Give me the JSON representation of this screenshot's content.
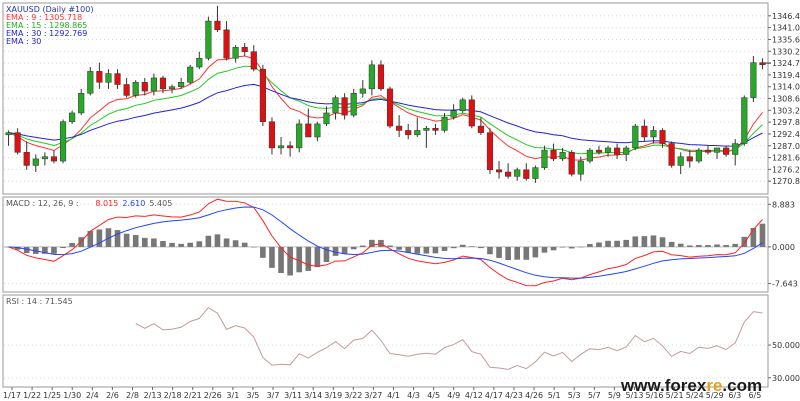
{
  "colors": {
    "bull": "#28a828",
    "bear": "#dd1111",
    "wick": "#333333",
    "ema9": "#ff3333",
    "ema15": "#22cc22",
    "ema30": "#2222dd",
    "macd_line": "#ff2222",
    "signal_line": "#2244ff",
    "hist": "#777777",
    "rsi": "#c49a9a",
    "grid": "#d8d8d8",
    "frame": "#999999",
    "watermark": "#1a1a1a",
    "watermark_accent": "#e8a020"
  },
  "panels": {
    "price": {
      "legend": [
        {
          "text": "XAUUSD (Daily #100)",
          "color": "#2233aa"
        },
        {
          "text": "EMA : 9 : 1305.718",
          "color": "#ff3333"
        },
        {
          "text": "EMA : 15 : 1298.865",
          "color": "#22aa22"
        },
        {
          "text": "EMA : 30 : 1292.769",
          "color": "#2222dd"
        },
        {
          "text": "EMA : 30",
          "color": "#2222dd"
        }
      ],
      "y_ticks": [
        "1346.40",
        "1341.00",
        "1335.60",
        "1330.20",
        "1324.79",
        "1319.40",
        "1314.00",
        "1308.60",
        "1303.20",
        "1297.80",
        "1292.40",
        "1287.00",
        "1281.60",
        "1276.20",
        "1270.80"
      ],
      "ylim": [
        1265.4,
        1351.8
      ],
      "last_price": "1324.79"
    },
    "macd": {
      "legend": [
        {
          "text": "MACD : 12, 26, 9 :",
          "color": "#555555"
        },
        {
          "text": "8.015",
          "color": "#ff2222"
        },
        {
          "text": "2.610",
          "color": "#2244ff"
        },
        {
          "text": "5.405",
          "color": "#555555"
        }
      ],
      "y_ticks": [
        "8.883",
        "0.000",
        "-7.643"
      ],
      "ylim": [
        -9.2,
        10.2
      ]
    },
    "rsi": {
      "legend": [
        {
          "text": "RSI : 14 : 71.545",
          "color": "#555555"
        }
      ],
      "y_ticks": [
        "50.000",
        "30.000"
      ],
      "ylim": [
        25,
        80
      ]
    }
  },
  "x_tick_labels": [
    "1/17",
    "1/22",
    "1/25",
    "1/30",
    "2/4",
    "2/6",
    "2/8",
    "2/13",
    "2/18",
    "2/21",
    "2/26",
    "3/1",
    "3/5",
    "3/7",
    "3/11",
    "3/14",
    "3/19",
    "3/22",
    "3/27",
    "4/1",
    "4/3",
    "4/5",
    "4/9",
    "4/12",
    "4/17",
    "4/23",
    "4/26",
    "5/1",
    "5/3",
    "5/7",
    "5/9",
    "5/13",
    "5/16",
    "5/21",
    "5/24",
    "5/29",
    "6/3",
    "6/5"
  ],
  "watermark": {
    "pre": "www.forex",
    "accent": "re",
    "post": ".com"
  },
  "chart_data": [
    {
      "type": "candlestick",
      "title": "XAUUSD (Daily #100)",
      "ylim": [
        1265.4,
        1351.8
      ],
      "candles": [
        {
          "o": 1292,
          "h": 1294,
          "l": 1287,
          "c": 1293
        },
        {
          "o": 1293,
          "h": 1295,
          "l": 1283,
          "c": 1284
        },
        {
          "o": 1284,
          "h": 1289,
          "l": 1276,
          "c": 1278
        },
        {
          "o": 1278,
          "h": 1283,
          "l": 1275,
          "c": 1281
        },
        {
          "o": 1281,
          "h": 1284,
          "l": 1278,
          "c": 1282
        },
        {
          "o": 1282,
          "h": 1285,
          "l": 1279,
          "c": 1280
        },
        {
          "o": 1280,
          "h": 1299,
          "l": 1279,
          "c": 1298
        },
        {
          "o": 1298,
          "h": 1303,
          "l": 1297,
          "c": 1302
        },
        {
          "o": 1302,
          "h": 1313,
          "l": 1301,
          "c": 1311
        },
        {
          "o": 1311,
          "h": 1323,
          "l": 1310,
          "c": 1321
        },
        {
          "o": 1321,
          "h": 1325,
          "l": 1313,
          "c": 1316
        },
        {
          "o": 1316,
          "h": 1322,
          "l": 1313,
          "c": 1320
        },
        {
          "o": 1320,
          "h": 1322,
          "l": 1313,
          "c": 1315
        },
        {
          "o": 1315,
          "h": 1318,
          "l": 1309,
          "c": 1310
        },
        {
          "o": 1310,
          "h": 1317,
          "l": 1309,
          "c": 1316
        },
        {
          "o": 1316,
          "h": 1318,
          "l": 1310,
          "c": 1312
        },
        {
          "o": 1312,
          "h": 1320,
          "l": 1310,
          "c": 1318
        },
        {
          "o": 1318,
          "h": 1319,
          "l": 1311,
          "c": 1313
        },
        {
          "o": 1313,
          "h": 1315,
          "l": 1311,
          "c": 1314
        },
        {
          "o": 1314,
          "h": 1318,
          "l": 1313,
          "c": 1316
        },
        {
          "o": 1316,
          "h": 1324,
          "l": 1315,
          "c": 1323
        },
        {
          "o": 1323,
          "h": 1330,
          "l": 1322,
          "c": 1327
        },
        {
          "o": 1327,
          "h": 1346,
          "l": 1326,
          "c": 1344
        },
        {
          "o": 1344,
          "h": 1351,
          "l": 1339,
          "c": 1340
        },
        {
          "o": 1340,
          "h": 1344,
          "l": 1326,
          "c": 1327
        },
        {
          "o": 1327,
          "h": 1333,
          "l": 1325,
          "c": 1332
        },
        {
          "o": 1332,
          "h": 1334,
          "l": 1328,
          "c": 1330
        },
        {
          "o": 1330,
          "h": 1333,
          "l": 1321,
          "c": 1322
        },
        {
          "o": 1322,
          "h": 1324,
          "l": 1296,
          "c": 1298
        },
        {
          "o": 1298,
          "h": 1300,
          "l": 1283,
          "c": 1286
        },
        {
          "o": 1286,
          "h": 1291,
          "l": 1283,
          "c": 1287
        },
        {
          "o": 1287,
          "h": 1289,
          "l": 1282,
          "c": 1286
        },
        {
          "o": 1286,
          "h": 1299,
          "l": 1284,
          "c": 1297
        },
        {
          "o": 1297,
          "h": 1304,
          "l": 1291,
          "c": 1291
        },
        {
          "o": 1291,
          "h": 1298,
          "l": 1289,
          "c": 1297
        },
        {
          "o": 1297,
          "h": 1305,
          "l": 1296,
          "c": 1302
        },
        {
          "o": 1302,
          "h": 1310,
          "l": 1299,
          "c": 1309
        },
        {
          "o": 1309,
          "h": 1311,
          "l": 1299,
          "c": 1301
        },
        {
          "o": 1301,
          "h": 1313,
          "l": 1300,
          "c": 1311
        },
        {
          "o": 1311,
          "h": 1317,
          "l": 1309,
          "c": 1313
        },
        {
          "o": 1313,
          "h": 1326,
          "l": 1310,
          "c": 1324
        },
        {
          "o": 1324,
          "h": 1326,
          "l": 1312,
          "c": 1313
        },
        {
          "o": 1313,
          "h": 1314,
          "l": 1295,
          "c": 1296
        },
        {
          "o": 1296,
          "h": 1301,
          "l": 1291,
          "c": 1294
        },
        {
          "o": 1294,
          "h": 1297,
          "l": 1290,
          "c": 1292
        },
        {
          "o": 1292,
          "h": 1300,
          "l": 1291,
          "c": 1294
        },
        {
          "o": 1294,
          "h": 1296,
          "l": 1286,
          "c": 1295
        },
        {
          "o": 1295,
          "h": 1297,
          "l": 1292,
          "c": 1294
        },
        {
          "o": 1294,
          "h": 1302,
          "l": 1293,
          "c": 1300
        },
        {
          "o": 1300,
          "h": 1306,
          "l": 1299,
          "c": 1303
        },
        {
          "o": 1303,
          "h": 1309,
          "l": 1302,
          "c": 1308
        },
        {
          "o": 1308,
          "h": 1310,
          "l": 1295,
          "c": 1296
        },
        {
          "o": 1296,
          "h": 1300,
          "l": 1292,
          "c": 1293
        },
        {
          "o": 1293,
          "h": 1295,
          "l": 1274,
          "c": 1276
        },
        {
          "o": 1276,
          "h": 1280,
          "l": 1272,
          "c": 1275
        },
        {
          "o": 1275,
          "h": 1279,
          "l": 1272,
          "c": 1273
        },
        {
          "o": 1273,
          "h": 1277,
          "l": 1271,
          "c": 1276
        },
        {
          "o": 1276,
          "h": 1279,
          "l": 1271,
          "c": 1272
        },
        {
          "o": 1272,
          "h": 1278,
          "l": 1270,
          "c": 1277
        },
        {
          "o": 1277,
          "h": 1287,
          "l": 1276,
          "c": 1285
        },
        {
          "o": 1285,
          "h": 1288,
          "l": 1280,
          "c": 1281
        },
        {
          "o": 1281,
          "h": 1286,
          "l": 1280,
          "c": 1284
        },
        {
          "o": 1284,
          "h": 1285,
          "l": 1273,
          "c": 1274
        },
        {
          "o": 1274,
          "h": 1282,
          "l": 1271,
          "c": 1280
        },
        {
          "o": 1280,
          "h": 1286,
          "l": 1279,
          "c": 1285
        },
        {
          "o": 1285,
          "h": 1287,
          "l": 1283,
          "c": 1284
        },
        {
          "o": 1284,
          "h": 1287,
          "l": 1282,
          "c": 1286
        },
        {
          "o": 1286,
          "h": 1288,
          "l": 1281,
          "c": 1283
        },
        {
          "o": 1283,
          "h": 1287,
          "l": 1280,
          "c": 1286
        },
        {
          "o": 1286,
          "h": 1297,
          "l": 1285,
          "c": 1296
        },
        {
          "o": 1296,
          "h": 1299,
          "l": 1289,
          "c": 1291
        },
        {
          "o": 1291,
          "h": 1296,
          "l": 1288,
          "c": 1294
        },
        {
          "o": 1294,
          "h": 1295,
          "l": 1286,
          "c": 1288
        },
        {
          "o": 1288,
          "h": 1289,
          "l": 1277,
          "c": 1278
        },
        {
          "o": 1278,
          "h": 1284,
          "l": 1274,
          "c": 1282
        },
        {
          "o": 1282,
          "h": 1285,
          "l": 1277,
          "c": 1280
        },
        {
          "o": 1280,
          "h": 1286,
          "l": 1279,
          "c": 1285
        },
        {
          "o": 1285,
          "h": 1287,
          "l": 1283,
          "c": 1284
        },
        {
          "o": 1284,
          "h": 1286,
          "l": 1281,
          "c": 1286
        },
        {
          "o": 1286,
          "h": 1287,
          "l": 1282,
          "c": 1283
        },
        {
          "o": 1283,
          "h": 1290,
          "l": 1278,
          "c": 1288
        },
        {
          "o": 1288,
          "h": 1310,
          "l": 1287,
          "c": 1309
        },
        {
          "o": 1309,
          "h": 1328,
          "l": 1307,
          "c": 1325
        },
        {
          "o": 1325,
          "h": 1327,
          "l": 1322,
          "c": 1324
        }
      ],
      "ema": [
        {
          "name": "EMA : 9 : 1305.718",
          "period": 9
        },
        {
          "name": "EMA : 15 : 1298.865",
          "period": 15
        },
        {
          "name": "EMA : 30 : 1292.769",
          "period": 30
        }
      ]
    },
    {
      "type": "macd",
      "title": "MACD : 12, 26, 9",
      "values": {
        "macd": 8.015,
        "signal": 2.61,
        "histogram": 5.405
      },
      "ylim": [
        -9.2,
        10.2
      ]
    },
    {
      "type": "line",
      "title": "RSI : 14 : 71.545",
      "period": 14,
      "ylim": [
        25,
        80
      ],
      "reference_levels": [
        50,
        30
      ]
    }
  ]
}
